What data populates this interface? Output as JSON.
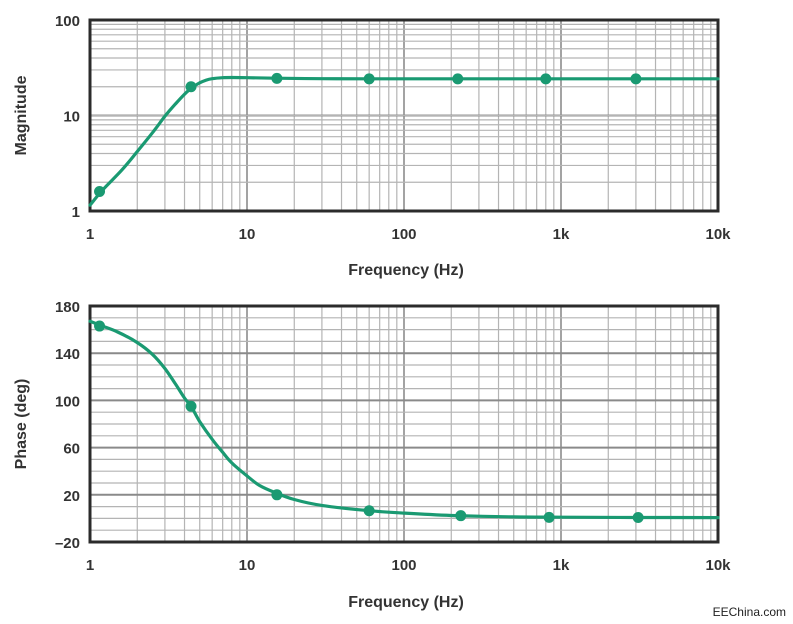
{
  "chart_data": [
    {
      "type": "line",
      "ylabel": "Magnitude",
      "xlabel": "Frequency (Hz)",
      "x_scale": "log",
      "y_scale": "log",
      "xlim": [
        1,
        10000
      ],
      "ylim": [
        1,
        100
      ],
      "x_ticks": [
        "1",
        "10",
        "100",
        "1k",
        "10k"
      ],
      "y_ticks": [
        "1",
        "10",
        "100"
      ],
      "grid": true,
      "line_color": "#1a9a72",
      "curve": {
        "x": [
          1,
          1.2,
          1.6,
          2,
          2.5,
          3,
          3.5,
          4,
          4.5,
          5,
          5.5,
          6,
          7,
          8,
          10,
          15,
          30,
          60,
          200,
          1000,
          10000
        ],
        "y": [
          1.15,
          1.65,
          2.7,
          4.2,
          6.6,
          9.8,
          13.2,
          16.7,
          19.8,
          22,
          23.5,
          24.3,
          24.9,
          25,
          24.9,
          24.6,
          24.3,
          24.2,
          24.2,
          24.2,
          24.2
        ]
      },
      "markers": {
        "x": [
          1.15,
          4.4,
          15.5,
          60,
          220,
          800,
          3000
        ],
        "y": [
          1.6,
          20,
          24.5,
          24.2,
          24.2,
          24.2,
          24.2
        ]
      }
    },
    {
      "type": "line",
      "ylabel": "Phase (deg)",
      "xlabel": "Frequency (Hz)",
      "x_scale": "log",
      "y_scale": "linear",
      "xlim": [
        1,
        10000
      ],
      "ylim": [
        -20,
        180
      ],
      "x_ticks": [
        "1",
        "10",
        "100",
        "1k",
        "10k"
      ],
      "y_ticks": [
        "180",
        "140",
        "100",
        "60",
        "20",
        "–20"
      ],
      "grid": true,
      "line_color": "#1a9a72",
      "curve": {
        "x": [
          1,
          1.2,
          1.5,
          2,
          2.5,
          3,
          3.5,
          4,
          4.4,
          5,
          6,
          7,
          8,
          10,
          12,
          15,
          20,
          30,
          60,
          100,
          200,
          500,
          1000,
          3000,
          10000
        ],
        "y": [
          167,
          163,
          158,
          149,
          139,
          127,
          114,
          102,
          95,
          82,
          67,
          56,
          47,
          36,
          28,
          22,
          16,
          11,
          6.5,
          4.5,
          2.5,
          1.3,
          1,
          0.8,
          0.7
        ]
      },
      "markers": {
        "x": [
          1.15,
          4.4,
          15.5,
          60,
          230,
          840,
          3100
        ],
        "y": [
          163,
          95,
          20,
          6.5,
          2.3,
          0.9,
          0.8
        ]
      }
    }
  ],
  "source": "EEChina.com"
}
